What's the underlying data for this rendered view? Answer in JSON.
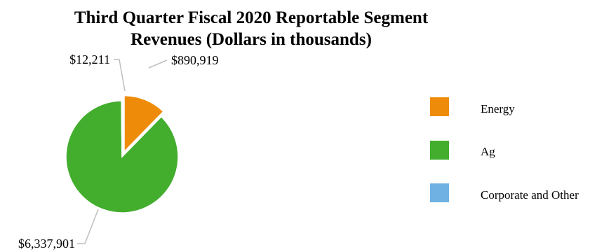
{
  "chart_data": {
    "type": "pie",
    "title_line1": "Third Quarter Fiscal 2020 Reportable Segment",
    "title_line2": "Revenues (Dollars in thousands)",
    "slices": [
      {
        "name": "Energy",
        "value": 890919,
        "label": "$890,919",
        "color": "#ee8c0a"
      },
      {
        "name": "Ag",
        "value": 6337901,
        "label": "$6,337,901",
        "color": "#43ad2e"
      },
      {
        "name": "Corporate and Other",
        "value": 12211,
        "label": "$12,211",
        "color": "#6fb1e3"
      }
    ],
    "legend_position": "right",
    "exploded_slice": "Energy"
  }
}
